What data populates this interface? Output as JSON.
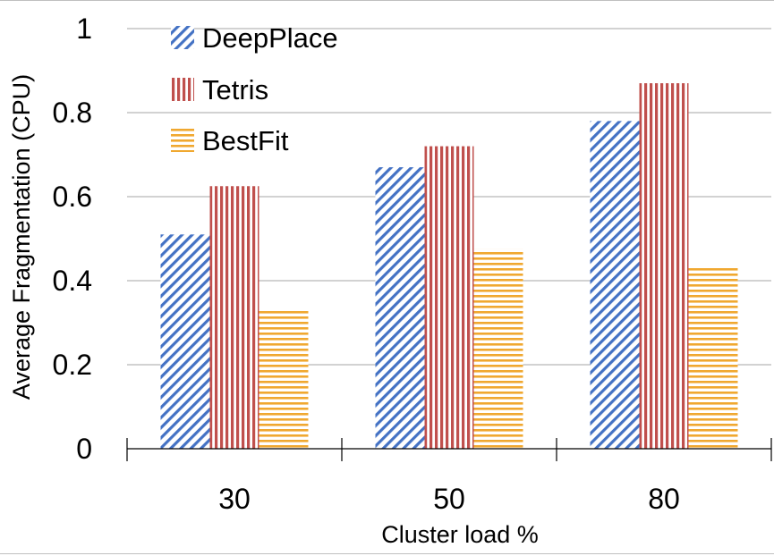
{
  "chart_data": {
    "type": "bar",
    "title": "",
    "xlabel": "Cluster load %",
    "ylabel": "Average Fragmentation (CPU)",
    "categories": [
      "30",
      "50",
      "80"
    ],
    "series": [
      {
        "name": "DeepPlace",
        "color": "#4472C4",
        "pattern": "diagonal-stripes",
        "values": [
          0.51,
          0.67,
          0.78
        ]
      },
      {
        "name": "Tetris",
        "color": "#C0504D",
        "pattern": "vertical-stripes",
        "values": [
          0.625,
          0.72,
          0.87
        ]
      },
      {
        "name": "BestFit",
        "color": "#F0A830",
        "pattern": "horizontal-stripes",
        "values": [
          0.33,
          0.475,
          0.435
        ]
      }
    ],
    "ylim": [
      0,
      1
    ],
    "yticks": [
      "0",
      "0.2",
      "0.4",
      "0.6",
      "0.8",
      "1"
    ],
    "grid": true,
    "legend_position": "top-left"
  }
}
